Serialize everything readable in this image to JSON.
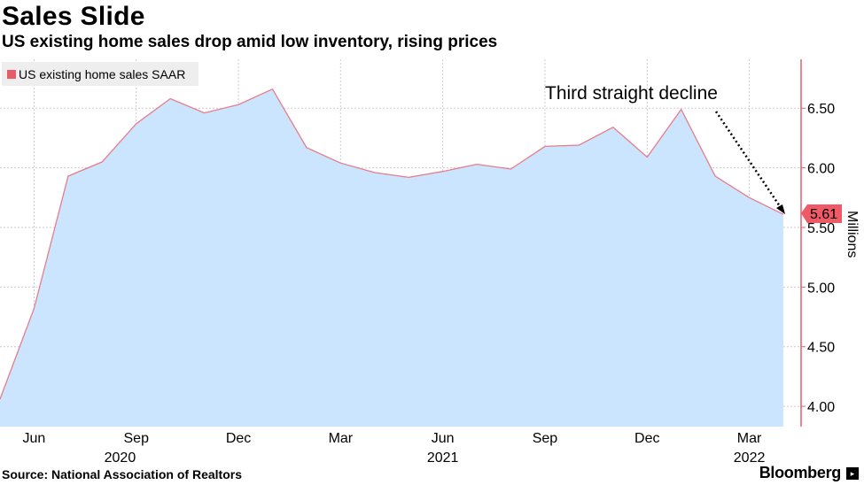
{
  "header": {
    "title": "Sales Slide",
    "subtitle": "US existing home sales drop amid low inventory, rising prices"
  },
  "legend": {
    "label": "US existing home sales SAAR",
    "color": "#e85c6a"
  },
  "footer": {
    "source": "Source:  National Association of Realtors",
    "brand": "Bloomberg"
  },
  "annotation": {
    "text": "Third straight decline"
  },
  "last_value_label": "5.61",
  "colors": {
    "fill": "#cce5ff",
    "line": "#e87c88",
    "axis": "#e85c6a",
    "grid": "#cccccc"
  },
  "chart_data": {
    "type": "area",
    "x": [
      "2020-05",
      "2020-06",
      "2020-07",
      "2020-08",
      "2020-09",
      "2020-10",
      "2020-11",
      "2020-12",
      "2021-01",
      "2021-02",
      "2021-03",
      "2021-04",
      "2021-05",
      "2021-06",
      "2021-07",
      "2021-08",
      "2021-09",
      "2021-10",
      "2021-11",
      "2021-12",
      "2022-01",
      "2022-02",
      "2022-03",
      "2022-04"
    ],
    "series": [
      {
        "name": "US existing home sales SAAR",
        "values": [
          4.06,
          4.82,
          5.93,
          6.05,
          6.37,
          6.58,
          6.46,
          6.53,
          6.66,
          6.17,
          6.04,
          5.96,
          5.92,
          5.97,
          6.03,
          5.99,
          6.18,
          6.19,
          6.34,
          6.09,
          6.49,
          5.93,
          5.75,
          5.61
        ]
      }
    ],
    "ylabel": "Millions",
    "ylim": [
      3.83,
      6.91
    ],
    "y_ticks": [
      "4.00",
      "4.50",
      "5.00",
      "5.50",
      "6.00",
      "6.50"
    ],
    "x_tick_labels": [
      {
        "month": "Jun",
        "year": "2020"
      },
      {
        "month": "Sep",
        "year": ""
      },
      {
        "month": "Dec",
        "year": ""
      },
      {
        "month": "Mar",
        "year": ""
      },
      {
        "month": "Jun",
        "year": "2021"
      },
      {
        "month": "Sep",
        "year": ""
      },
      {
        "month": "Dec",
        "year": ""
      },
      {
        "month": "Mar",
        "year": "2022"
      }
    ],
    "y_axis_side": "right",
    "grid": true,
    "legend_position": "top-left"
  }
}
